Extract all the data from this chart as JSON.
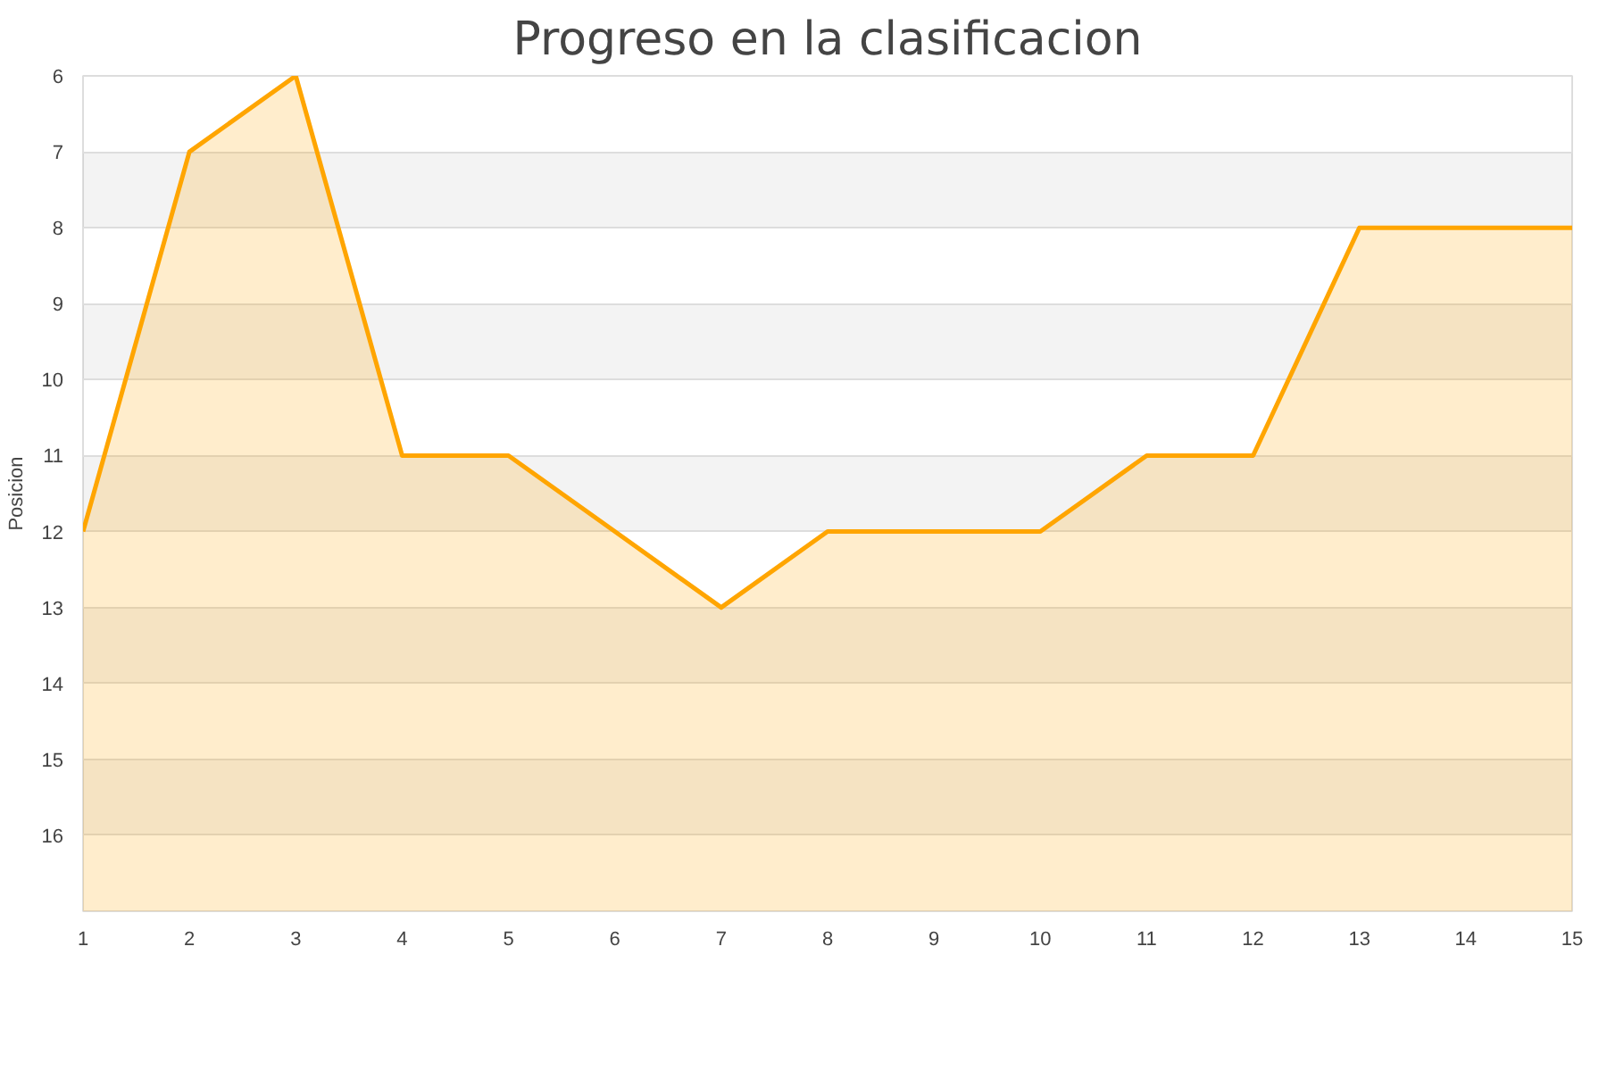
{
  "chart_data": {
    "type": "area",
    "title": "Progreso en la clasificacion",
    "ylabel": "Posicion",
    "x": [
      1,
      2,
      3,
      4,
      5,
      6,
      7,
      8,
      9,
      10,
      11,
      12,
      13,
      14,
      15
    ],
    "series": [
      {
        "color": "#ffa500",
        "values": [
          12,
          7,
          6,
          11,
          11,
          12,
          13,
          12,
          12,
          12,
          11,
          11,
          8,
          8,
          8
        ]
      }
    ],
    "xlim": [
      1,
      15
    ],
    "xticks": [
      1,
      2,
      3,
      4,
      5,
      6,
      7,
      8,
      9,
      10,
      11,
      12,
      13,
      14,
      15
    ],
    "ylim": [
      17,
      6
    ],
    "yticks": [
      6,
      7,
      8,
      9,
      10,
      11,
      12,
      13,
      14,
      15,
      16
    ],
    "grid": "y"
  }
}
